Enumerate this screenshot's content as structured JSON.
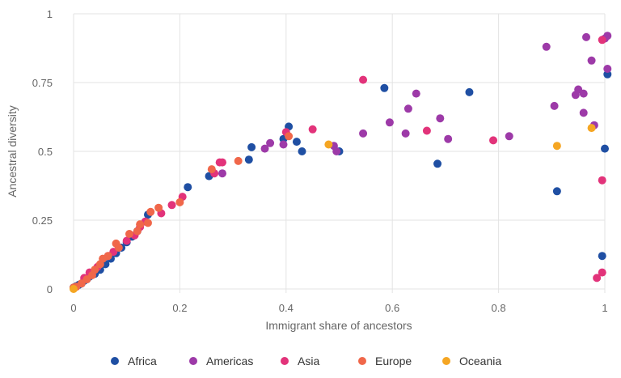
{
  "chart_data": {
    "type": "scatter",
    "title": "",
    "xlabel": "Immigrant share of ancestors",
    "ylabel": "Ancestral diversity",
    "xlim": [
      0,
      1
    ],
    "ylim": [
      0,
      1
    ],
    "x_ticks": [
      0,
      0.2,
      0.4,
      0.6,
      0.8,
      1
    ],
    "x_tick_labels": [
      "0",
      "0.2",
      "0.4",
      "0.6",
      "0.8",
      "1"
    ],
    "y_ticks": [
      0,
      0.25,
      0.5,
      0.75,
      1
    ],
    "y_tick_labels": [
      "0",
      "0.25",
      "0.5",
      "0.75",
      "1"
    ],
    "grid": true,
    "legend_position": "bottom",
    "series": [
      {
        "name": "Africa",
        "color": "#1f4fa3",
        "points": [
          [
            0.0,
            0.005
          ],
          [
            0.005,
            0.01
          ],
          [
            0.01,
            0.015
          ],
          [
            0.015,
            0.02
          ],
          [
            0.02,
            0.03
          ],
          [
            0.025,
            0.035
          ],
          [
            0.03,
            0.045
          ],
          [
            0.04,
            0.055
          ],
          [
            0.05,
            0.07
          ],
          [
            0.06,
            0.09
          ],
          [
            0.07,
            0.11
          ],
          [
            0.08,
            0.13
          ],
          [
            0.09,
            0.15
          ],
          [
            0.1,
            0.17
          ],
          [
            0.11,
            0.19
          ],
          [
            0.12,
            0.21
          ],
          [
            0.14,
            0.27
          ],
          [
            0.215,
            0.37
          ],
          [
            0.255,
            0.41
          ],
          [
            0.33,
            0.47
          ],
          [
            0.335,
            0.515
          ],
          [
            0.395,
            0.545
          ],
          [
            0.405,
            0.59
          ],
          [
            0.42,
            0.535
          ],
          [
            0.43,
            0.5
          ],
          [
            0.5,
            0.5
          ],
          [
            0.585,
            0.73
          ],
          [
            0.685,
            0.455
          ],
          [
            0.745,
            0.715
          ],
          [
            0.91,
            0.355
          ],
          [
            0.995,
            0.12
          ],
          [
            1.0,
            0.51
          ],
          [
            1.005,
            0.78
          ]
        ]
      },
      {
        "name": "Americas",
        "color": "#9d3aa8",
        "points": [
          [
            0.28,
            0.42
          ],
          [
            0.36,
            0.51
          ],
          [
            0.37,
            0.53
          ],
          [
            0.395,
            0.525
          ],
          [
            0.49,
            0.52
          ],
          [
            0.495,
            0.5
          ],
          [
            0.545,
            0.565
          ],
          [
            0.595,
            0.605
          ],
          [
            0.625,
            0.565
          ],
          [
            0.63,
            0.655
          ],
          [
            0.645,
            0.71
          ],
          [
            0.69,
            0.62
          ],
          [
            0.705,
            0.545
          ],
          [
            0.82,
            0.555
          ],
          [
            0.89,
            0.88
          ],
          [
            0.905,
            0.665
          ],
          [
            0.945,
            0.705
          ],
          [
            0.95,
            0.725
          ],
          [
            0.96,
            0.64
          ],
          [
            0.96,
            0.71
          ],
          [
            0.965,
            0.915
          ],
          [
            0.975,
            0.83
          ],
          [
            0.98,
            0.595
          ],
          [
            1.0,
            0.91
          ],
          [
            1.005,
            0.8
          ],
          [
            1.005,
            0.92
          ]
        ]
      },
      {
        "name": "Asia",
        "color": "#e2337a",
        "points": [
          [
            0.02,
            0.04
          ],
          [
            0.03,
            0.06
          ],
          [
            0.045,
            0.08
          ],
          [
            0.065,
            0.12
          ],
          [
            0.075,
            0.135
          ],
          [
            0.1,
            0.175
          ],
          [
            0.115,
            0.195
          ],
          [
            0.125,
            0.225
          ],
          [
            0.135,
            0.245
          ],
          [
            0.165,
            0.275
          ],
          [
            0.185,
            0.305
          ],
          [
            0.205,
            0.335
          ],
          [
            0.265,
            0.42
          ],
          [
            0.275,
            0.46
          ],
          [
            0.28,
            0.46
          ],
          [
            0.4,
            0.57
          ],
          [
            0.45,
            0.58
          ],
          [
            0.545,
            0.76
          ],
          [
            0.665,
            0.575
          ],
          [
            0.79,
            0.54
          ],
          [
            0.985,
            0.04
          ],
          [
            0.995,
            0.06
          ],
          [
            0.995,
            0.395
          ],
          [
            0.995,
            0.905
          ]
        ]
      },
      {
        "name": "Europe",
        "color": "#f0674a",
        "points": [
          [
            0.0,
            0.005
          ],
          [
            0.005,
            0.008
          ],
          [
            0.015,
            0.02
          ],
          [
            0.025,
            0.035
          ],
          [
            0.035,
            0.05
          ],
          [
            0.04,
            0.07
          ],
          [
            0.05,
            0.09
          ],
          [
            0.055,
            0.11
          ],
          [
            0.065,
            0.12
          ],
          [
            0.08,
            0.165
          ],
          [
            0.085,
            0.15
          ],
          [
            0.105,
            0.2
          ],
          [
            0.12,
            0.21
          ],
          [
            0.125,
            0.235
          ],
          [
            0.14,
            0.24
          ],
          [
            0.145,
            0.28
          ],
          [
            0.16,
            0.295
          ],
          [
            0.2,
            0.315
          ],
          [
            0.26,
            0.435
          ],
          [
            0.31,
            0.465
          ],
          [
            0.405,
            0.555
          ]
        ]
      },
      {
        "name": "Oceania",
        "color": "#f5a623",
        "points": [
          [
            0.0,
            0.0
          ],
          [
            0.48,
            0.525
          ],
          [
            0.91,
            0.52
          ],
          [
            0.975,
            0.585
          ]
        ]
      }
    ]
  }
}
